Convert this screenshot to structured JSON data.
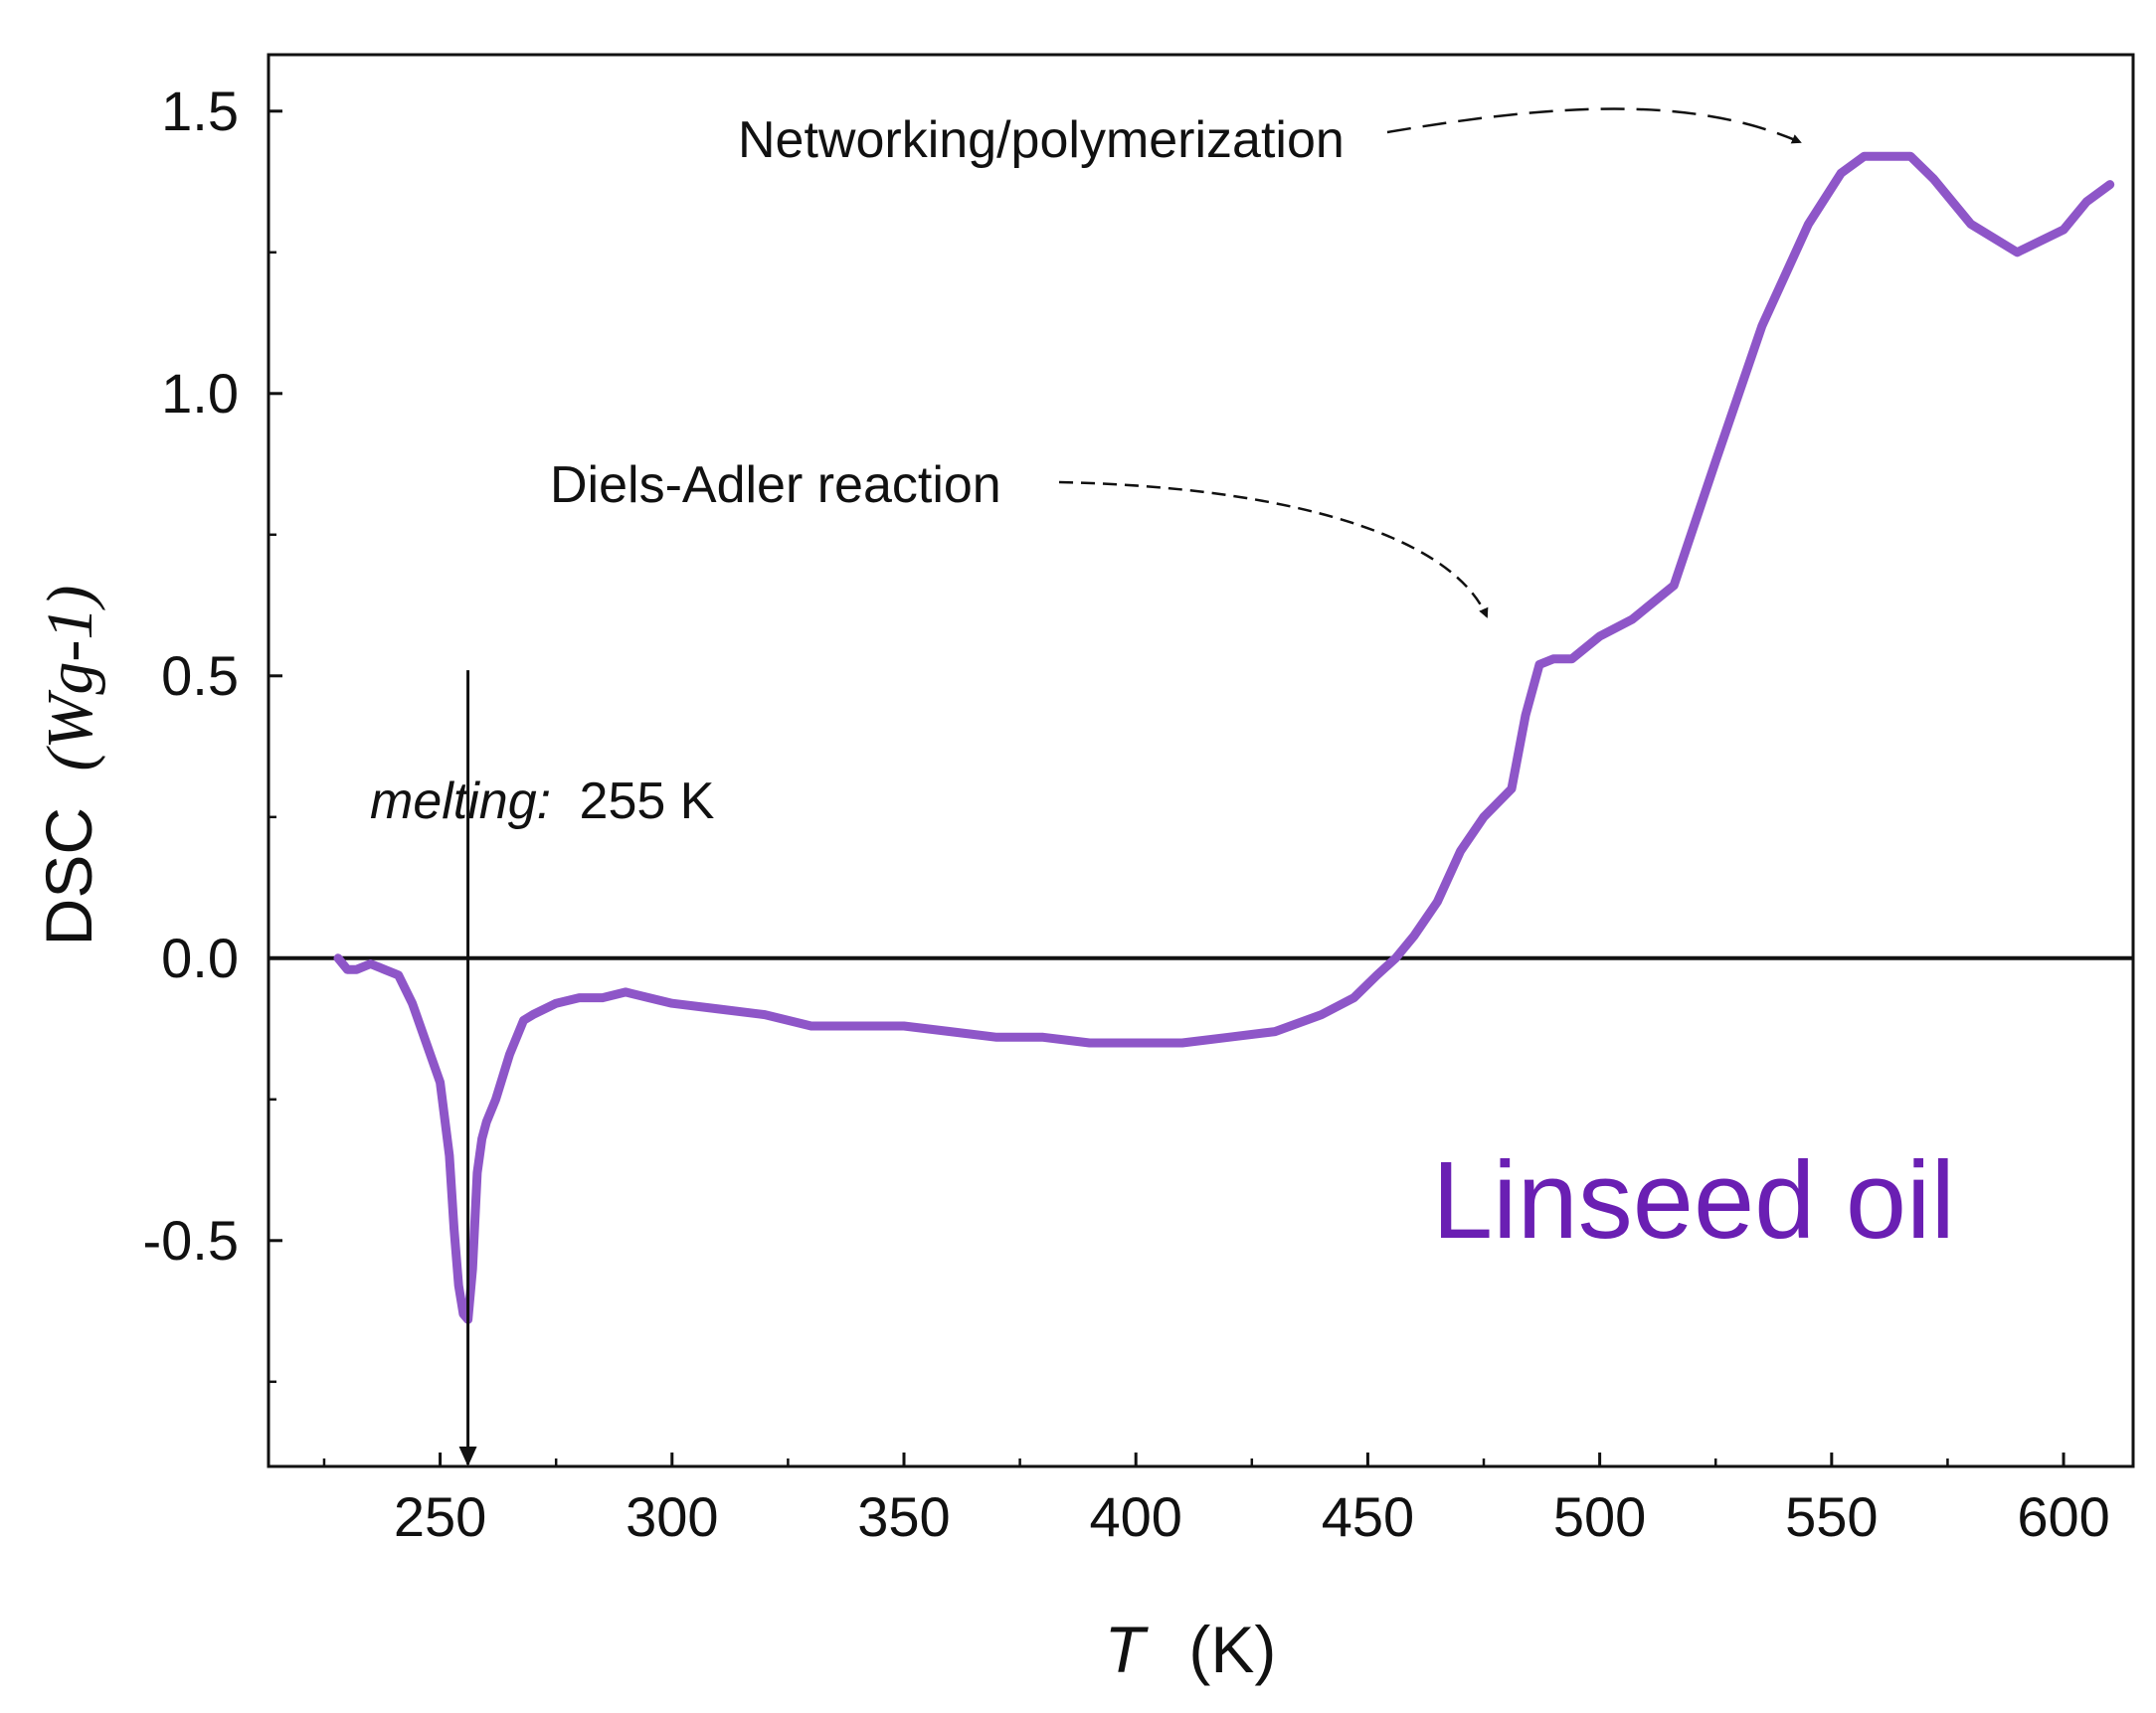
{
  "chart_data": {
    "type": "line",
    "title": "",
    "xlabel": {
      "symbol": "T",
      "unit": "(K)"
    },
    "ylabel": {
      "name": "DSC",
      "unit": "(Wg-1)"
    },
    "xlim": [
      213,
      615
    ],
    "ylim": [
      -0.9,
      1.6
    ],
    "xticks": [
      250,
      300,
      350,
      400,
      450,
      500,
      550,
      600
    ],
    "xtick_labels": [
      "250",
      "300",
      "350",
      "400",
      "450",
      "500",
      "550",
      "600"
    ],
    "yticks": [
      -0.5,
      0.0,
      0.5,
      1.0,
      1.5
    ],
    "ytick_labels": [
      "-0.5",
      "0.0",
      "0.5",
      "1.0",
      "1.5"
    ],
    "grid": false,
    "zero_line": 0.0,
    "series": [
      {
        "name": "Linseed oil",
        "color": "#8e56c8",
        "x": [
          228,
          230,
          232,
          235,
          238,
          241,
          244,
          247,
          250,
          252,
          253,
          254,
          255,
          256,
          257,
          258,
          259,
          260,
          262,
          265,
          268,
          270,
          275,
          280,
          285,
          290,
          295,
          300,
          310,
          320,
          330,
          340,
          350,
          360,
          370,
          380,
          390,
          400,
          410,
          420,
          430,
          440,
          447,
          452,
          456,
          460,
          465,
          470,
          475,
          481,
          484,
          487,
          490,
          494,
          500,
          507,
          516,
          525,
          535,
          545,
          552,
          557,
          562,
          567,
          572,
          580,
          590,
          600,
          605,
          610
        ],
        "y": [
          0.0,
          -0.02,
          -0.02,
          -0.01,
          -0.02,
          -0.03,
          -0.08,
          -0.15,
          -0.22,
          -0.35,
          -0.48,
          -0.58,
          -0.63,
          -0.64,
          -0.55,
          -0.38,
          -0.32,
          -0.29,
          -0.25,
          -0.17,
          -0.11,
          -0.1,
          -0.08,
          -0.07,
          -0.07,
          -0.06,
          -0.07,
          -0.08,
          -0.09,
          -0.1,
          -0.12,
          -0.12,
          -0.12,
          -0.13,
          -0.14,
          -0.14,
          -0.15,
          -0.15,
          -0.15,
          -0.14,
          -0.13,
          -0.1,
          -0.07,
          -0.03,
          0.0,
          0.04,
          0.1,
          0.19,
          0.25,
          0.3,
          0.43,
          0.52,
          0.53,
          0.53,
          0.57,
          0.6,
          0.66,
          0.88,
          1.12,
          1.3,
          1.39,
          1.42,
          1.42,
          1.42,
          1.38,
          1.3,
          1.25,
          1.29,
          1.34,
          1.37
        ]
      }
    ],
    "annotations": {
      "networking": "Networking/polymerization",
      "diels_alder": "Diels-Adler reaction",
      "melting_italic": "melting:",
      "melting_value": "255 K",
      "melting_x": 256,
      "series_label": "Linseed oil"
    }
  },
  "colors": {
    "series": "#8e56c8",
    "series_label": "#6a1fb3",
    "axis": "#111111"
  }
}
